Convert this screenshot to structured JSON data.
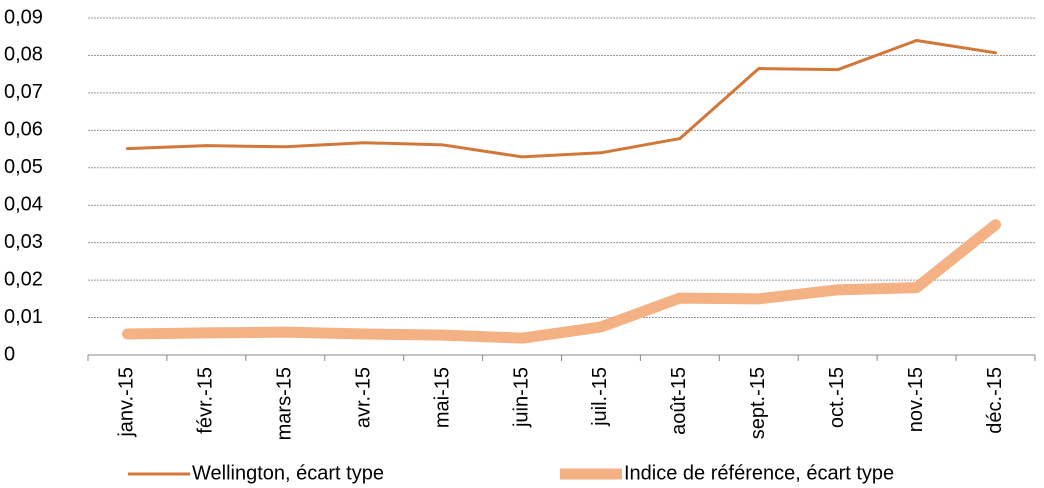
{
  "chart_data": {
    "type": "line",
    "categories": [
      "janv.-15",
      "févr.-15",
      "mars-15",
      "avr.-15",
      "mai-15",
      "juin-15",
      "juil.-15",
      "août-15",
      "sept.-15",
      "oct.-15",
      "nov.-15",
      "déc.-15"
    ],
    "series": [
      {
        "name": "Wellington, écart type",
        "color": "#d2773a",
        "values": [
          0.0551,
          0.0559,
          0.0556,
          0.0567,
          0.0561,
          0.0529,
          0.054,
          0.0578,
          0.0765,
          0.0762,
          0.084,
          0.0807
        ]
      },
      {
        "name": "Indice de référence, écart type",
        "color": "#f4b183",
        "values": [
          0.0056,
          0.0059,
          0.0061,
          0.0056,
          0.0053,
          0.0045,
          0.0075,
          0.0152,
          0.015,
          0.0174,
          0.018,
          0.0348
        ]
      }
    ],
    "ylim": [
      0,
      0.09
    ],
    "yticks": [
      0,
      {
        "value": 0.01,
        "label": "0,01"
      },
      {
        "value": 0.02,
        "label": "0,02"
      },
      {
        "value": 0.03,
        "label": "0,03"
      },
      {
        "value": 0.04,
        "label": "0,04"
      },
      {
        "value": 0.05,
        "label": "0,05"
      },
      {
        "value": 0.06,
        "label": "0,06"
      },
      {
        "value": 0.07,
        "label": "0,07"
      },
      {
        "value": 0.08,
        "label": "0,08"
      },
      {
        "value": 0.09,
        "label": "0,09"
      }
    ],
    "grid": true,
    "legend": "bottom"
  }
}
